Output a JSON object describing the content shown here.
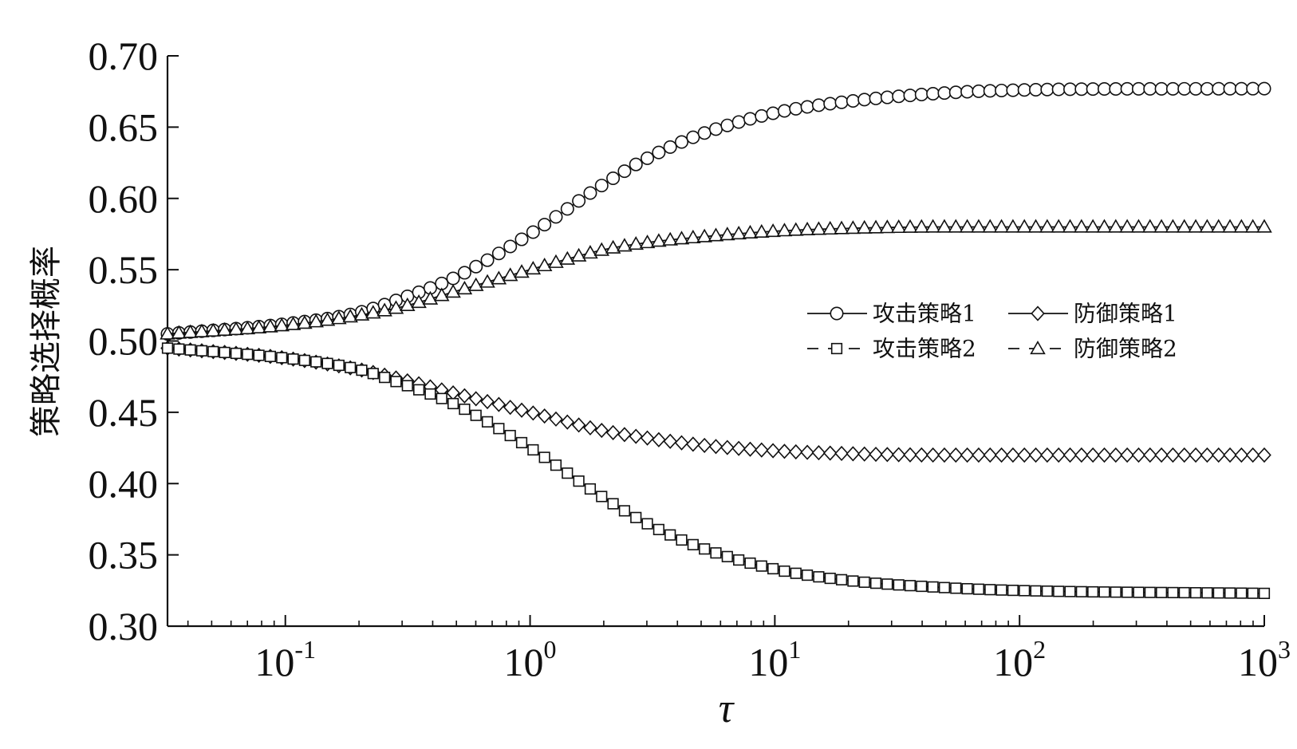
{
  "chart_data": {
    "type": "line",
    "title": "",
    "xlabel": "τ",
    "ylabel": "策略选择概率",
    "xscale": "log",
    "xlim": [
      0.033,
      1000
    ],
    "ylim": [
      0.3,
      0.7
    ],
    "y_ticks": [
      "0.30",
      "0.35",
      "0.40",
      "0.45",
      "0.50",
      "0.55",
      "0.60",
      "0.65",
      "0.70"
    ],
    "x_ticks": [
      {
        "base": "10",
        "exp": "-1",
        "value": 0.1
      },
      {
        "base": "10",
        "exp": "0",
        "value": 1
      },
      {
        "base": "10",
        "exp": "1",
        "value": 10
      },
      {
        "base": "10",
        "exp": "2",
        "value": 100
      },
      {
        "base": "10",
        "exp": "3",
        "value": 1000
      }
    ],
    "grid": false,
    "legend": {
      "placement": "center-right",
      "columns": 2
    },
    "series": [
      {
        "name": "攻击策略1",
        "marker": "circle",
        "dash": "solid",
        "color": "#111111",
        "x": [
          0.033,
          0.1,
          0.2,
          0.3,
          0.5,
          1,
          2,
          3,
          5,
          10,
          20,
          50,
          100,
          1000
        ],
        "y": [
          0.505,
          0.512,
          0.52,
          0.53,
          0.545,
          0.575,
          0.61,
          0.628,
          0.645,
          0.66,
          0.668,
          0.674,
          0.676,
          0.677
        ]
      },
      {
        "name": "防御策略1",
        "marker": "diamond",
        "dash": "solid",
        "color": "#111111",
        "x": [
          0.033,
          0.1,
          0.2,
          0.3,
          0.5,
          1,
          2,
          3,
          5,
          10,
          20,
          50,
          100,
          1000
        ],
        "y": [
          0.495,
          0.488,
          0.48,
          0.473,
          0.463,
          0.45,
          0.437,
          0.432,
          0.427,
          0.423,
          0.421,
          0.42,
          0.42,
          0.42
        ]
      },
      {
        "name": "攻击策略2",
        "marker": "square",
        "dash": "dashed",
        "color": "#111111",
        "x": [
          0.033,
          0.1,
          0.2,
          0.3,
          0.5,
          1,
          2,
          3,
          5,
          10,
          20,
          50,
          100,
          1000
        ],
        "y": [
          0.495,
          0.488,
          0.48,
          0.47,
          0.455,
          0.425,
          0.39,
          0.372,
          0.355,
          0.34,
          0.332,
          0.327,
          0.325,
          0.323
        ]
      },
      {
        "name": "防御策略2",
        "marker": "triangle",
        "dash": "dashed",
        "color": "#111111",
        "x": [
          0.033,
          0.1,
          0.2,
          0.3,
          0.5,
          1,
          2,
          3,
          5,
          10,
          20,
          50,
          100,
          1000
        ],
        "y": [
          0.505,
          0.511,
          0.518,
          0.524,
          0.535,
          0.55,
          0.564,
          0.569,
          0.573,
          0.577,
          0.579,
          0.58,
          0.58,
          0.58
        ]
      }
    ]
  }
}
